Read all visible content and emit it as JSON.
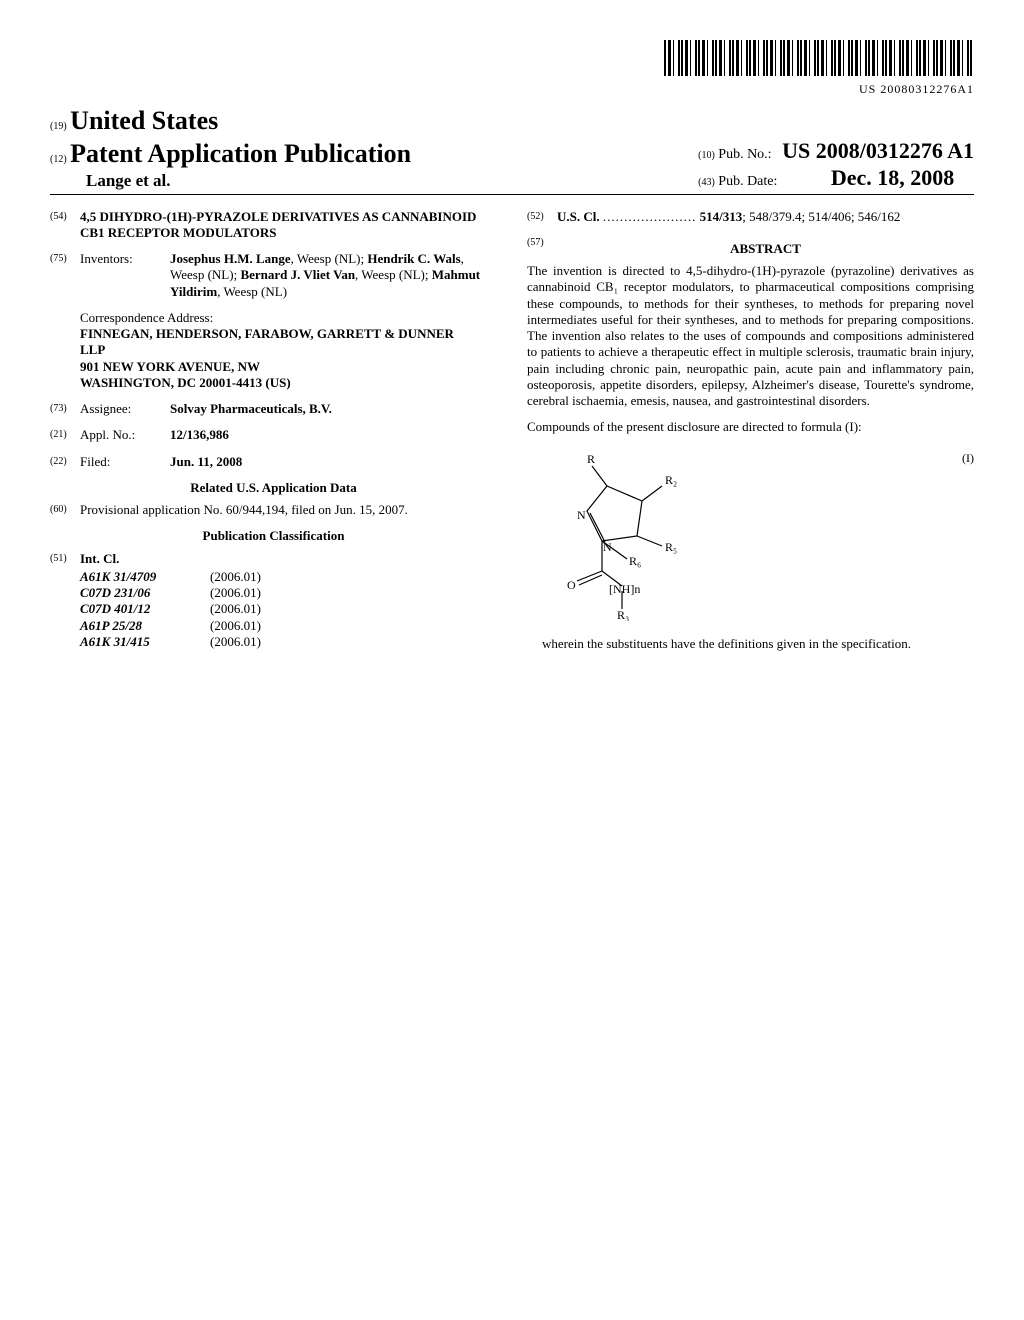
{
  "barcode_text": "US 20080312276A1",
  "masthead": {
    "country_num": "(19)",
    "country": "United States",
    "doctype_num": "(12)",
    "doctype": "Patent Application Publication",
    "authors": "Lange et al.",
    "pubno_num": "(10)",
    "pubno_label": "Pub. No.:",
    "pubno": "US 2008/0312276 A1",
    "pubdate_num": "(43)",
    "pubdate_label": "Pub. Date:",
    "pubdate": "Dec. 18, 2008"
  },
  "title": {
    "num": "(54)",
    "text": "4,5 DIHYDRO-(1H)-PYRAZOLE DERIVATIVES AS CANNABINOID CB1 RECEPTOR MODULATORS"
  },
  "inventors": {
    "num": "(75)",
    "label": "Inventors:",
    "list_html": "<b>Josephus H.M. Lange</b>, Weesp (NL); <b>Hendrik C. Wals</b>, Weesp (NL); <b>Bernard J. Vliet Van</b>, Weesp (NL); <b>Mahmut Yildirim</b>, Weesp (NL)"
  },
  "correspondence": {
    "label": "Correspondence Address:",
    "name": "FINNEGAN, HENDERSON, FARABOW, GARRETT & DUNNER",
    "firm": "LLP",
    "street": "901 NEW YORK AVENUE, NW",
    "citystate": "WASHINGTON, DC 20001-4413 (US)"
  },
  "assignee": {
    "num": "(73)",
    "label": "Assignee:",
    "value": "Solvay Pharmaceuticals, B.V."
  },
  "applno": {
    "num": "(21)",
    "label": "Appl. No.:",
    "value": "12/136,986"
  },
  "filed": {
    "num": "(22)",
    "label": "Filed:",
    "value": "Jun. 11, 2008"
  },
  "related_heading": "Related U.S. Application Data",
  "provisional": {
    "num": "(60)",
    "text": "Provisional application No. 60/944,194, filed on Jun. 15, 2007."
  },
  "classification_heading": "Publication Classification",
  "intcl": {
    "num": "(51)",
    "label": "Int. Cl.",
    "rows": [
      {
        "code": "A61K 31/4709",
        "ver": "(2006.01)"
      },
      {
        "code": "C07D 231/06",
        "ver": "(2006.01)"
      },
      {
        "code": "C07D 401/12",
        "ver": "(2006.01)"
      },
      {
        "code": "A61P 25/28",
        "ver": "(2006.01)"
      },
      {
        "code": "A61K 31/415",
        "ver": "(2006.01)"
      }
    ]
  },
  "uscl": {
    "num": "(52)",
    "label": "U.S. Cl.",
    "dots": "......................",
    "value_bold": "514/313",
    "value_rest": "; 548/379.4; 514/406; 546/162"
  },
  "abstract": {
    "num": "(57)",
    "heading": "ABSTRACT",
    "p1": "The invention is directed to 4,5-dihydro-(1H)-pyrazole (pyrazoline) derivatives as cannabinoid CB₁ receptor modulators, to pharmaceutical compositions comprising these compounds, to methods for their syntheses, to methods for preparing novel intermediates useful for their syntheses, and to methods for preparing compositions. The invention also relates to the uses of compounds and compositions administered to patients to achieve a therapeutic effect in multiple sclerosis, traumatic brain injury, pain including chronic pain, neuropathic pain, acute pain and inflammatory pain, osteoporosis, appetite disorders, epilepsy, Alzheimer's disease, Tourette's syndrome, cerebral ischaemia, emesis, nausea, and gastrointestinal disorders.",
    "p2": "Compounds of the present disclosure are directed to formula (I):",
    "formula_label": "(I)",
    "p3": "wherein the substituents have the definitions given in the specification.",
    "structure": {
      "labels": {
        "R": "R",
        "R2": "R₂",
        "R5": "R₅",
        "R6": "R₆",
        "R3": "R₃",
        "N1": "N",
        "N2": "N",
        "O": "O",
        "NHn": "[NH]n"
      }
    }
  }
}
